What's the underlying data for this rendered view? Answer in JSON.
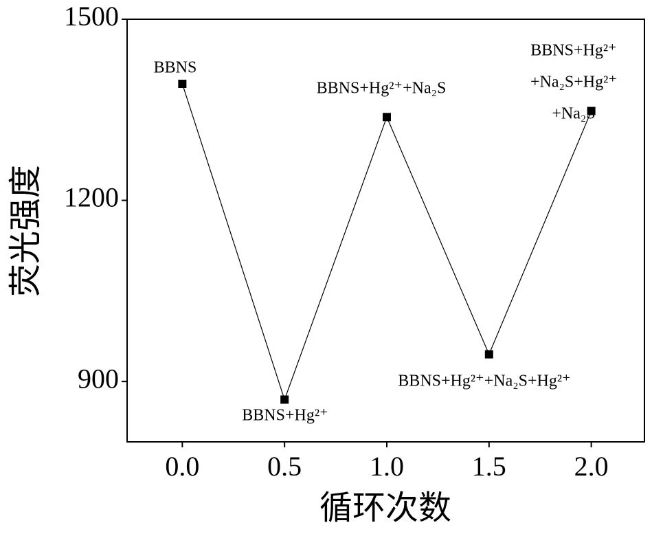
{
  "chart_data": {
    "type": "line",
    "x_label": "循环次数",
    "y_label": "荧光强度",
    "x": [
      0,
      0.5,
      1.0,
      1.5,
      2.0
    ],
    "series": [
      {
        "color": "#000000",
        "values": [
          1393,
          870,
          1338,
          945,
          1348
        ]
      }
    ],
    "xlim": [
      -0.27,
      2.26
    ],
    "ylim": [
      800,
      1500
    ],
    "xticks": [
      {
        "value": 0,
        "label": "0.0"
      },
      {
        "value": 0.5,
        "label": "0.5"
      },
      {
        "value": 1,
        "label": "1.0"
      },
      {
        "value": 1.5,
        "label": "1.5"
      },
      {
        "value": 2,
        "label": "2.0"
      }
    ],
    "yticks": [
      900,
      1200,
      1500
    ],
    "annotations": [
      [
        "BBNS"
      ],
      [
        "BBNS+Hg²⁺"
      ],
      [
        "BBNS+Hg²⁺+Na₂S"
      ],
      [
        "BBNS+Hg²⁺+Na₂S+Hg²⁺"
      ],
      [
        "BBNS+Hg²⁺",
        "+Na₂S+Hg²⁺",
        "+Na₂S"
      ]
    ]
  }
}
